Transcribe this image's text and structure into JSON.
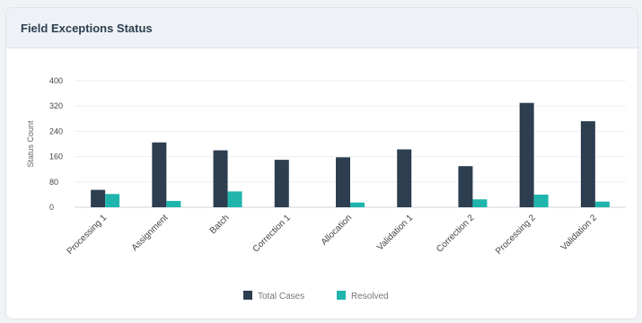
{
  "card": {
    "title": "Field Exceptions Status"
  },
  "chart_data": {
    "type": "bar",
    "title": "Field Exceptions Status",
    "ylabel": "Status Count",
    "xlabel": "",
    "ylim": [
      0,
      400
    ],
    "yticks": [
      0,
      80,
      160,
      240,
      320,
      400
    ],
    "grid": true,
    "legend_position": "bottom",
    "categories": [
      "Processing 1",
      "Assignment",
      "Batch",
      "Correction 1",
      "Allocation",
      "Validation 1",
      "Correction 2",
      "Processing 2",
      "Validation 2"
    ],
    "series": [
      {
        "name": "Total Cases",
        "color": "#2c3e50",
        "values": [
          55,
          205,
          180,
          150,
          158,
          183,
          130,
          330,
          272
        ]
      },
      {
        "name": "Resolved",
        "color": "#1fb5ad",
        "values": [
          42,
          20,
          50,
          0,
          15,
          0,
          25,
          40,
          18
        ]
      }
    ]
  }
}
